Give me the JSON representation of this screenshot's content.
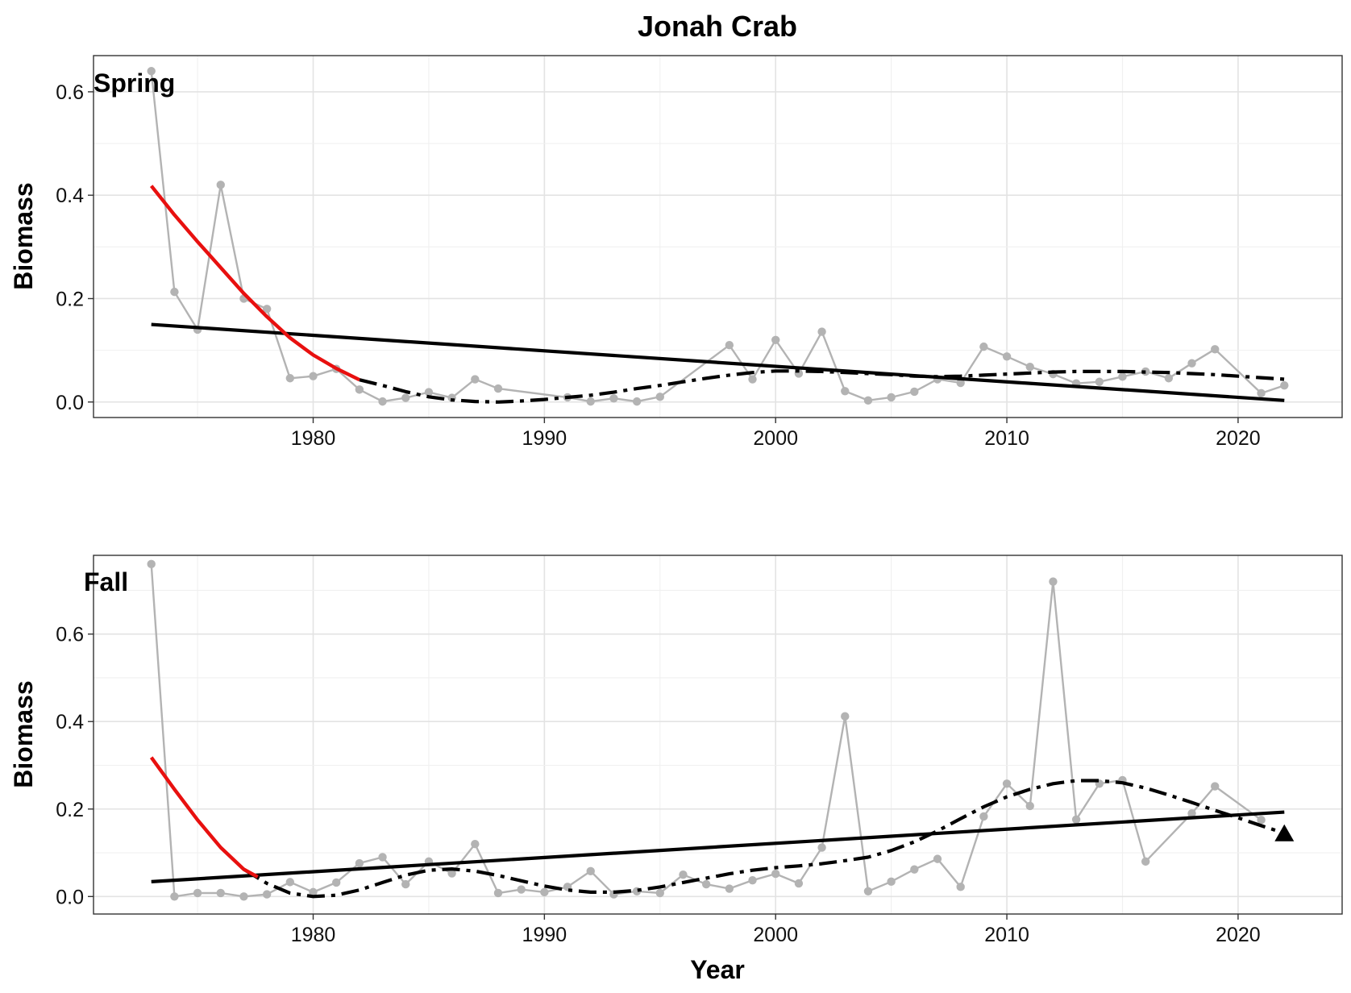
{
  "chart_data": {
    "type": "line",
    "title": "Jonah Crab",
    "xlabel": "Year",
    "ylabel": "Biomass",
    "xlim": [
      1970.5,
      2024.5
    ],
    "x_ticks": [
      1980,
      1990,
      2000,
      2010,
      2020
    ],
    "grid": true,
    "colors": {
      "observed": "#b3b3b3",
      "linear_trend": "#000000",
      "smooth_trend": "#000000",
      "highlight_segment": "#e8100f",
      "panel_border": "#333333"
    },
    "panels": [
      {
        "label": "Spring",
        "ylim": [
          -0.03,
          0.67
        ],
        "y_ticks": [
          0.0,
          0.2,
          0.4,
          0.6
        ],
        "y_tick_labels": [
          "0.0",
          "0.2",
          "0.4",
          "0.6"
        ],
        "observed": {
          "x": [
            1973,
            1974,
            1975,
            1976,
            1977,
            1978,
            1979,
            1980,
            1981,
            1982,
            1983,
            1984,
            1985,
            1986,
            1987,
            1988,
            1991,
            1992,
            1993,
            1994,
            1995,
            1998,
            1999,
            2000,
            2001,
            2002,
            2003,
            2004,
            2005,
            2006,
            2007,
            2008,
            2009,
            2010,
            2011,
            2012,
            2013,
            2014,
            2015,
            2016,
            2017,
            2018,
            2019,
            2021,
            2022
          ],
          "y": [
            0.64,
            0.213,
            0.14,
            0.42,
            0.2,
            0.18,
            0.046,
            0.05,
            0.064,
            0.024,
            0.001,
            0.008,
            0.019,
            0.008,
            0.044,
            0.026,
            0.009,
            0.001,
            0.007,
            0.001,
            0.01,
            0.11,
            0.044,
            0.12,
            0.055,
            0.136,
            0.021,
            0.003,
            0.009,
            0.02,
            0.044,
            0.037,
            0.107,
            0.088,
            0.068,
            0.054,
            0.036,
            0.039,
            0.049,
            0.059,
            0.046,
            0.075,
            0.102,
            0.017,
            0.032
          ]
        },
        "linear_trend": {
          "x": [
            1973,
            2022
          ],
          "y": [
            0.15,
            0.003
          ]
        },
        "smooth_trend": {
          "x": [
            1982,
            1983,
            1984,
            1985,
            1986,
            1987,
            1988,
            1989,
            1990,
            1991,
            1992,
            1993,
            1994,
            1995,
            1996,
            1997,
            1998,
            1999,
            2000,
            2001,
            2002,
            2003,
            2004,
            2005,
            2006,
            2007,
            2008,
            2009,
            2010,
            2011,
            2012,
            2013,
            2014,
            2015,
            2016,
            2017,
            2018,
            2019,
            2020,
            2021,
            2022
          ],
          "y": [
            0.043,
            0.032,
            0.02,
            0.01,
            0.004,
            0.001,
            0.0,
            0.002,
            0.005,
            0.009,
            0.013,
            0.019,
            0.026,
            0.032,
            0.039,
            0.046,
            0.052,
            0.057,
            0.06,
            0.06,
            0.059,
            0.057,
            0.055,
            0.053,
            0.05,
            0.049,
            0.05,
            0.052,
            0.054,
            0.056,
            0.058,
            0.059,
            0.059,
            0.059,
            0.058,
            0.057,
            0.055,
            0.053,
            0.05,
            0.047,
            0.044
          ]
        },
        "highlight_segment": {
          "x": [
            1973,
            1974,
            1975,
            1976,
            1977,
            1978,
            1979,
            1980,
            1981,
            1982
          ],
          "y": [
            0.418,
            0.362,
            0.31,
            0.26,
            0.21,
            0.165,
            0.124,
            0.091,
            0.065,
            0.043
          ]
        },
        "end_marker": null
      },
      {
        "label": "Fall",
        "ylim": [
          -0.04,
          0.78
        ],
        "y_ticks": [
          0.0,
          0.2,
          0.4,
          0.6
        ],
        "y_tick_labels": [
          "0.0",
          "0.2",
          "0.4",
          "0.6"
        ],
        "observed": {
          "x": [
            1973,
            1974,
            1975,
            1976,
            1977,
            1978,
            1979,
            1980,
            1981,
            1982,
            1983,
            1984,
            1985,
            1986,
            1987,
            1988,
            1989,
            1990,
            1991,
            1992,
            1993,
            1994,
            1995,
            1996,
            1997,
            1998,
            1999,
            2000,
            2001,
            2002,
            2003,
            2004,
            2005,
            2006,
            2007,
            2008,
            2009,
            2010,
            2011,
            2012,
            2013,
            2014,
            2015,
            2016,
            2018,
            2019,
            2021
          ],
          "y": [
            0.76,
            0.0,
            0.008,
            0.008,
            0.0,
            0.005,
            0.033,
            0.01,
            0.032,
            0.076,
            0.09,
            0.028,
            0.08,
            0.053,
            0.12,
            0.008,
            0.016,
            0.01,
            0.022,
            0.058,
            0.005,
            0.012,
            0.008,
            0.05,
            0.028,
            0.018,
            0.037,
            0.052,
            0.03,
            0.112,
            0.412,
            0.012,
            0.034,
            0.062,
            0.086,
            0.022,
            0.183,
            0.258,
            0.207,
            0.72,
            0.176,
            0.258,
            0.266,
            0.08,
            0.19,
            0.252,
            0.175
          ]
        },
        "linear_trend": {
          "x": [
            1973,
            2022
          ],
          "y": [
            0.034,
            0.193
          ]
        },
        "smooth_trend": {
          "x": [
            1977,
            1978,
            1979,
            1980,
            1981,
            1982,
            1983,
            1984,
            1985,
            1986,
            1987,
            1988,
            1989,
            1990,
            1991,
            1992,
            1993,
            1994,
            1995,
            1996,
            1997,
            1998,
            1999,
            2000,
            2001,
            2002,
            2003,
            2004,
            2005,
            2006,
            2007,
            2008,
            2009,
            2010,
            2011,
            2012,
            2013,
            2014,
            2015,
            2016,
            2017,
            2018,
            2019,
            2020,
            2021,
            2022
          ],
          "y": [
            0.062,
            0.03,
            0.008,
            0.0,
            0.003,
            0.015,
            0.032,
            0.049,
            0.06,
            0.063,
            0.058,
            0.048,
            0.036,
            0.024,
            0.015,
            0.01,
            0.01,
            0.014,
            0.022,
            0.032,
            0.042,
            0.052,
            0.06,
            0.066,
            0.07,
            0.075,
            0.082,
            0.09,
            0.105,
            0.125,
            0.15,
            0.178,
            0.205,
            0.228,
            0.245,
            0.258,
            0.265,
            0.265,
            0.26,
            0.248,
            0.232,
            0.215,
            0.197,
            0.18,
            0.162,
            0.145
          ]
        },
        "highlight_segment": {
          "x": [
            1973,
            1974,
            1975,
            1976,
            1977,
            1977.6
          ],
          "y": [
            0.318,
            0.245,
            0.175,
            0.112,
            0.062,
            0.045
          ]
        },
        "end_marker": {
          "x": 2022,
          "y": 0.143,
          "shape": "triangle-up"
        }
      }
    ]
  }
}
